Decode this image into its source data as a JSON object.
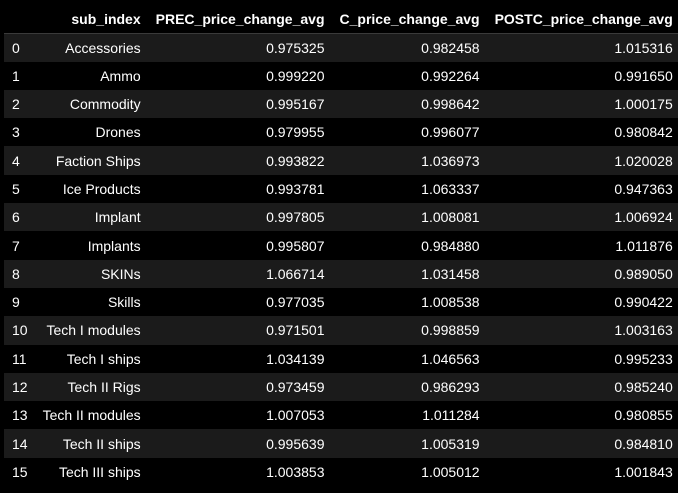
{
  "table": {
    "columns": [
      "",
      "sub_index",
      "PREC_price_change_avg",
      "C_price_change_avg",
      "POSTC_price_change_avg"
    ],
    "rows": [
      [
        "0",
        "Accessories",
        "0.975325",
        "0.982458",
        "1.015316"
      ],
      [
        "1",
        "Ammo",
        "0.999220",
        "0.992264",
        "0.991650"
      ],
      [
        "2",
        "Commodity",
        "0.995167",
        "0.998642",
        "1.000175"
      ],
      [
        "3",
        "Drones",
        "0.979955",
        "0.996077",
        "0.980842"
      ],
      [
        "4",
        "Faction Ships",
        "0.993822",
        "1.036973",
        "1.020028"
      ],
      [
        "5",
        "Ice Products",
        "0.993781",
        "1.063337",
        "0.947363"
      ],
      [
        "6",
        "Implant",
        "0.997805",
        "1.008081",
        "1.006924"
      ],
      [
        "7",
        "Implants",
        "0.995807",
        "0.984880",
        "1.011876"
      ],
      [
        "8",
        "SKINs",
        "1.066714",
        "1.031458",
        "0.989050"
      ],
      [
        "9",
        "Skills",
        "0.977035",
        "1.008538",
        "0.990422"
      ],
      [
        "10",
        "Tech I modules",
        "0.971501",
        "0.998859",
        "1.003163"
      ],
      [
        "11",
        "Tech I ships",
        "1.034139",
        "1.046563",
        "0.995233"
      ],
      [
        "12",
        "Tech II Rigs",
        "0.973459",
        "0.986293",
        "0.985240"
      ],
      [
        "13",
        "Tech II modules",
        "1.007053",
        "1.011284",
        "0.980855"
      ],
      [
        "14",
        "Tech II ships",
        "0.995639",
        "1.005319",
        "0.984810"
      ],
      [
        "15",
        "Tech III ships",
        "1.003853",
        "1.005012",
        "1.001843"
      ]
    ]
  }
}
